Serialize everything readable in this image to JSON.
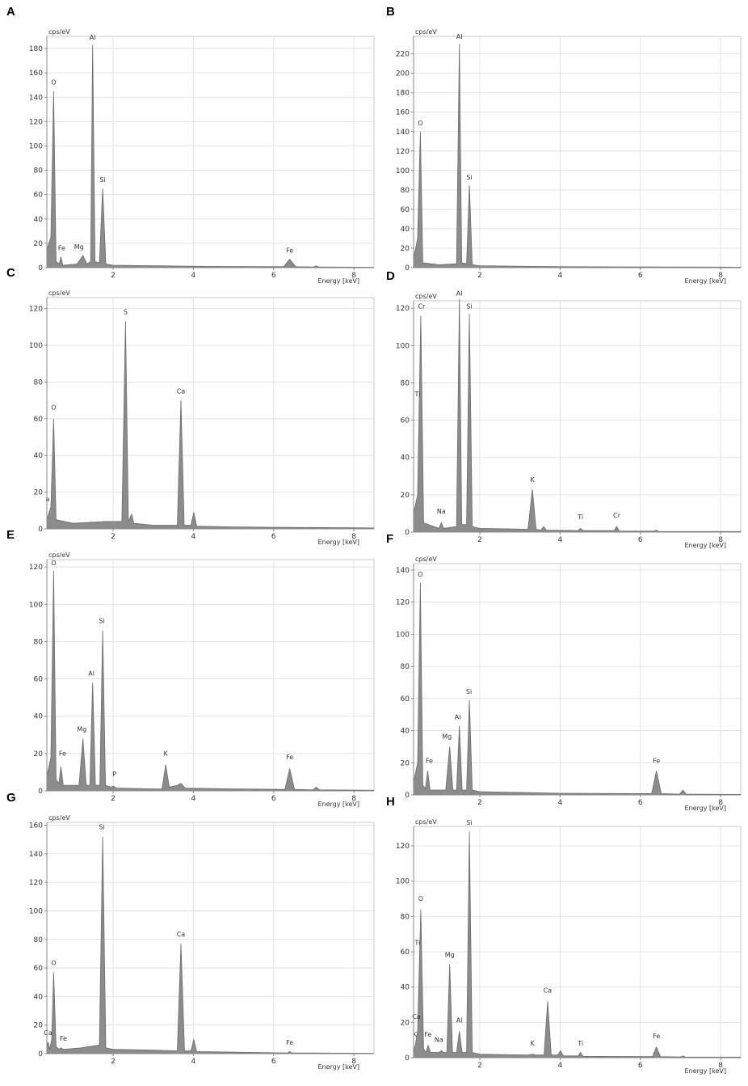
{
  "chart_data": [
    {
      "type": "area",
      "label": "A",
      "ylabel": "cps/eV",
      "xlabel": "Energy [keV]",
      "color": "#8c8c8c",
      "grid": true,
      "xlim": [
        0.35,
        8.5
      ],
      "xticks": [
        2,
        4,
        6,
        8
      ],
      "ylim": [
        0,
        190
      ],
      "yticks": [
        0,
        20,
        40,
        60,
        80,
        100,
        120,
        140,
        160,
        180
      ],
      "x": [
        0.35,
        0.45,
        0.52,
        0.58,
        0.66,
        0.7,
        0.75,
        1.1,
        1.25,
        1.35,
        1.44,
        1.49,
        1.55,
        1.66,
        1.74,
        1.82,
        2.0,
        3,
        4.5,
        6.25,
        6.4,
        6.55,
        7.0,
        7.06,
        7.12,
        8.5
      ],
      "values": [
        15,
        25,
        145,
        5,
        3,
        9,
        2,
        3,
        10,
        3,
        5,
        183,
        5,
        4,
        65,
        3,
        2,
        1.5,
        1,
        0.8,
        7,
        0.8,
        0.5,
        1.5,
        0.5,
        0.3
      ],
      "annotations": [
        {
          "text": "O",
          "x": 0.52,
          "y": 149
        },
        {
          "text": "Fe",
          "x": 0.72,
          "y": 13
        },
        {
          "text": "Mg",
          "x": 1.15,
          "y": 14
        },
        {
          "text": "Al",
          "x": 1.49,
          "y": 186
        },
        {
          "text": "Si",
          "x": 1.74,
          "y": 69
        },
        {
          "text": "Fe",
          "x": 6.4,
          "y": 11
        }
      ]
    },
    {
      "type": "area",
      "label": "B",
      "ylabel": "cps/eV",
      "xlabel": "Energy [keV]",
      "color": "#8c8c8c",
      "grid": true,
      "xlim": [
        0.35,
        8.5
      ],
      "xticks": [
        2,
        4,
        6,
        8
      ],
      "ylim": [
        0,
        238
      ],
      "yticks": [
        0,
        20,
        40,
        60,
        80,
        100,
        120,
        140,
        160,
        180,
        200,
        220
      ],
      "x": [
        0.35,
        0.45,
        0.52,
        0.58,
        1.0,
        1.42,
        1.49,
        1.55,
        1.67,
        1.74,
        1.81,
        2.0,
        4,
        8.5
      ],
      "values": [
        10,
        30,
        140,
        5,
        3,
        4,
        230,
        5,
        4,
        85,
        3,
        2,
        1,
        0.5
      ],
      "annotations": [
        {
          "text": "O",
          "x": 0.52,
          "y": 145
        },
        {
          "text": "Al",
          "x": 1.49,
          "y": 234
        },
        {
          "text": "Si",
          "x": 1.74,
          "y": 89
        }
      ]
    },
    {
      "type": "area",
      "label": "C",
      "ylabel": "cps/eV",
      "xlabel": "Energy [keV]",
      "color": "#8c8c8c",
      "grid": true,
      "xlim": [
        0.35,
        8.5
      ],
      "xticks": [
        2,
        4,
        6,
        8
      ],
      "ylim": [
        0,
        126
      ],
      "yticks": [
        0,
        20,
        40,
        60,
        80,
        100,
        120
      ],
      "x": [
        0.35,
        0.45,
        0.52,
        0.58,
        1.0,
        1.8,
        2.22,
        2.31,
        2.38,
        2.46,
        2.52,
        3.0,
        3.6,
        3.69,
        3.77,
        3.94,
        4.01,
        4.08,
        5,
        8.5
      ],
      "values": [
        5,
        12,
        60,
        5,
        3,
        4,
        4,
        113,
        4,
        8,
        3,
        2,
        2,
        70,
        2,
        2,
        9,
        1.5,
        1,
        0.5
      ],
      "annotations": [
        {
          "text": "a",
          "x": 0.37,
          "y": 14
        },
        {
          "text": "O",
          "x": 0.52,
          "y": 64
        },
        {
          "text": "S",
          "x": 2.31,
          "y": 116
        },
        {
          "text": "Ca",
          "x": 3.69,
          "y": 73
        }
      ]
    },
    {
      "type": "area",
      "label": "D",
      "ylabel": "cps/eV",
      "xlabel": "Energy [keV]",
      "color": "#8c8c8c",
      "grid": true,
      "xlim": [
        0.35,
        8.5
      ],
      "xticks": [
        2,
        4,
        6,
        8
      ],
      "ylim": [
        0,
        124
      ],
      "yticks": [
        0,
        20,
        40,
        60,
        80,
        100,
        120
      ],
      "x": [
        0.35,
        0.45,
        0.53,
        0.6,
        0.98,
        1.04,
        1.1,
        1.42,
        1.49,
        1.55,
        1.67,
        1.74,
        1.81,
        2.0,
        3.2,
        3.31,
        3.4,
        3.52,
        3.59,
        3.66,
        4.45,
        4.51,
        4.57,
        5.35,
        5.41,
        5.47,
        6.35,
        6.4,
        6.45,
        8.5
      ],
      "values": [
        10,
        20,
        116,
        5,
        2,
        5,
        2,
        3,
        125,
        4,
        4,
        117,
        3,
        2,
        1.5,
        23,
        1.5,
        1,
        3,
        1,
        0.8,
        2,
        0.8,
        0.8,
        3,
        0.6,
        0.5,
        1,
        0.4,
        0.3
      ],
      "annotations": [
        {
          "text": "Cr",
          "x": 0.55,
          "y": 119
        },
        {
          "text": "Ti",
          "x": 0.45,
          "y": 72
        },
        {
          "text": "Na",
          "x": 1.04,
          "y": 9
        },
        {
          "text": "Al",
          "x": 1.49,
          "y": 126
        },
        {
          "text": "Si",
          "x": 1.74,
          "y": 119
        },
        {
          "text": "K",
          "x": 3.31,
          "y": 26
        },
        {
          "text": "Ti",
          "x": 4.51,
          "y": 6
        },
        {
          "text": "Cr",
          "x": 5.41,
          "y": 7
        }
      ]
    },
    {
      "type": "area",
      "label": "E",
      "ylabel": "cps/eV",
      "xlabel": "Energy [keV]",
      "color": "#8c8c8c",
      "grid": true,
      "xlim": [
        0.35,
        8.5
      ],
      "xticks": [
        2,
        4,
        6,
        8
      ],
      "ylim": [
        0,
        124
      ],
      "yticks": [
        0,
        20,
        40,
        60,
        80,
        100,
        120
      ],
      "x": [
        0.35,
        0.45,
        0.52,
        0.58,
        0.65,
        0.7,
        0.76,
        1.15,
        1.25,
        1.33,
        1.42,
        1.49,
        1.56,
        1.67,
        1.74,
        1.81,
        1.95,
        2.01,
        2.08,
        3.0,
        3.22,
        3.31,
        3.4,
        3.6,
        3.69,
        3.8,
        5,
        6.28,
        6.4,
        6.52,
        6.98,
        7.06,
        7.14,
        8.5
      ],
      "values": [
        8,
        18,
        118,
        6,
        4,
        13,
        3,
        3,
        28,
        3,
        3,
        58,
        3,
        3,
        86,
        3,
        2,
        2.5,
        1.5,
        1,
        1,
        14,
        2,
        3,
        4,
        1.5,
        1,
        0.8,
        12,
        0.8,
        0.5,
        2,
        0.5,
        0.3
      ],
      "annotations": [
        {
          "text": "O",
          "x": 0.52,
          "y": 120
        },
        {
          "text": "Fe",
          "x": 0.74,
          "y": 18
        },
        {
          "text": "Mg",
          "x": 1.22,
          "y": 31
        },
        {
          "text": "Al",
          "x": 1.46,
          "y": 61
        },
        {
          "text": "Si",
          "x": 1.72,
          "y": 89
        },
        {
          "text": "P",
          "x": 2.03,
          "y": 7
        },
        {
          "text": "K",
          "x": 3.31,
          "y": 18
        },
        {
          "text": "Fe",
          "x": 6.4,
          "y": 16
        }
      ]
    },
    {
      "type": "area",
      "label": "F",
      "ylabel": "cps/eV",
      "xlabel": "Energy [keV]",
      "color": "#8c8c8c",
      "grid": true,
      "xlim": [
        0.35,
        8.5
      ],
      "xticks": [
        2,
        4,
        6,
        8
      ],
      "ylim": [
        0,
        144
      ],
      "yticks": [
        0,
        20,
        40,
        60,
        80,
        100,
        120,
        140
      ],
      "x": [
        0.35,
        0.45,
        0.52,
        0.58,
        0.65,
        0.7,
        0.76,
        1.15,
        1.25,
        1.33,
        1.42,
        1.49,
        1.56,
        1.67,
        1.74,
        1.81,
        2.0,
        4,
        6.28,
        6.4,
        6.52,
        6.98,
        7.06,
        7.14,
        8.5
      ],
      "values": [
        8,
        20,
        132,
        6,
        4,
        15,
        3,
        3,
        30,
        3,
        3,
        43,
        3,
        3,
        59,
        3,
        2,
        1,
        0.8,
        15,
        0.8,
        0.5,
        3,
        0.5,
        0.3
      ],
      "annotations": [
        {
          "text": "O",
          "x": 0.52,
          "y": 135
        },
        {
          "text": "Fe",
          "x": 0.74,
          "y": 19
        },
        {
          "text": "Mg",
          "x": 1.18,
          "y": 34
        },
        {
          "text": "Al",
          "x": 1.45,
          "y": 46
        },
        {
          "text": "Si",
          "x": 1.73,
          "y": 62
        },
        {
          "text": "Fe",
          "x": 6.4,
          "y": 19
        }
      ]
    },
    {
      "type": "area",
      "label": "G",
      "ylabel": "cps/eV",
      "xlabel": "Energy [keV]",
      "color": "#8c8c8c",
      "grid": true,
      "xlim": [
        0.35,
        8.5
      ],
      "xticks": [
        2,
        4,
        6,
        8
      ],
      "ylim": [
        0,
        162
      ],
      "yticks": [
        0,
        20,
        40,
        60,
        80,
        100,
        120,
        140,
        160
      ],
      "x": [
        0.35,
        0.38,
        0.42,
        0.47,
        0.52,
        0.58,
        0.65,
        0.7,
        0.76,
        1.2,
        1.66,
        1.74,
        1.82,
        2.0,
        3.0,
        3.6,
        3.69,
        3.78,
        3.94,
        4.01,
        4.08,
        5,
        6.35,
        6.4,
        6.45,
        8.5
      ],
      "values": [
        5,
        8,
        3,
        10,
        57,
        5,
        3,
        4,
        3,
        4,
        6,
        152,
        4,
        3,
        2.5,
        2,
        77,
        2,
        2,
        10,
        1.5,
        1,
        0.5,
        1.5,
        0.5,
        0.3
      ],
      "annotations": [
        {
          "text": "Ca",
          "x": 0.38,
          "y": 12
        },
        {
          "text": "O",
          "x": 0.52,
          "y": 61
        },
        {
          "text": "Fe",
          "x": 0.76,
          "y": 8
        },
        {
          "text": "Si",
          "x": 1.72,
          "y": 156
        },
        {
          "text": "Ca",
          "x": 3.69,
          "y": 81
        },
        {
          "text": "Fe",
          "x": 6.4,
          "y": 5
        }
      ]
    },
    {
      "type": "area",
      "label": "H",
      "ylabel": "cps/eV",
      "xlabel": "Energy [keV]",
      "color": "#8c8c8c",
      "grid": true,
      "xlim": [
        0.35,
        8.5
      ],
      "xticks": [
        2,
        4,
        6,
        8
      ],
      "ylim": [
        0,
        131
      ],
      "yticks": [
        0,
        20,
        40,
        60,
        80,
        100,
        120
      ],
      "x": [
        0.35,
        0.4,
        0.45,
        0.53,
        0.6,
        0.66,
        0.71,
        0.77,
        0.98,
        1.04,
        1.1,
        1.18,
        1.25,
        1.32,
        1.42,
        1.49,
        1.56,
        1.67,
        1.74,
        1.81,
        2.0,
        3.2,
        3.31,
        3.4,
        3.6,
        3.69,
        3.78,
        3.94,
        4.01,
        4.08,
        4.45,
        4.51,
        4.57,
        6.3,
        6.4,
        6.5,
        7.0,
        7.06,
        7.12,
        8.5
      ],
      "values": [
        3,
        8,
        15,
        84,
        5,
        3,
        7,
        3,
        3,
        4,
        3,
        3,
        53,
        3,
        3,
        15,
        3,
        3,
        128,
        3,
        2,
        1.5,
        2,
        1.5,
        1.5,
        32,
        1.5,
        1.5,
        4,
        1,
        1,
        3,
        0.8,
        0.6,
        6,
        0.6,
        0.4,
        1,
        0.4,
        0.3
      ],
      "annotations": [
        {
          "text": "K",
          "x": 0.38,
          "y": 11
        },
        {
          "text": "Ca",
          "x": 0.42,
          "y": 21
        },
        {
          "text": "Ti",
          "x": 0.45,
          "y": 63
        },
        {
          "text": "O",
          "x": 0.53,
          "y": 88
        },
        {
          "text": "Fe",
          "x": 0.71,
          "y": 11
        },
        {
          "text": "Na",
          "x": 0.98,
          "y": 8
        },
        {
          "text": "Mg",
          "x": 1.25,
          "y": 56
        },
        {
          "text": "Al",
          "x": 1.49,
          "y": 19
        },
        {
          "text": "Si",
          "x": 1.74,
          "y": 131
        },
        {
          "text": "K",
          "x": 3.31,
          "y": 6
        },
        {
          "text": "Ca",
          "x": 3.69,
          "y": 36
        },
        {
          "text": "Ti",
          "x": 4.51,
          "y": 6
        },
        {
          "text": "Fe",
          "x": 6.4,
          "y": 10
        }
      ]
    }
  ]
}
